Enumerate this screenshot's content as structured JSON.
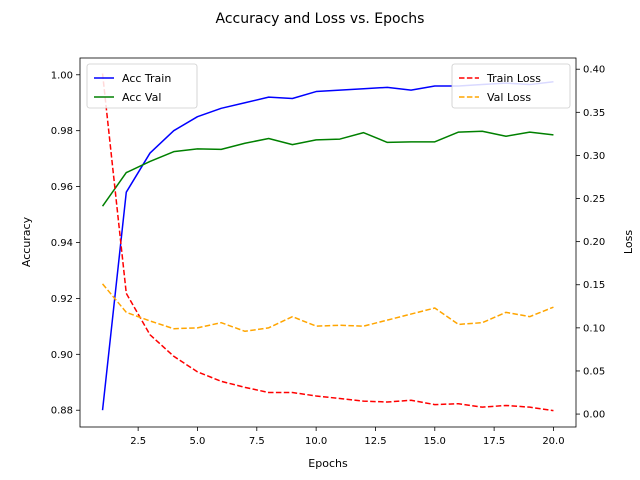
{
  "chart_data": {
    "type": "line",
    "title": "Accuracy and Loss vs. Epochs",
    "xlabel": "Epochs",
    "ylabel_left": "Accuracy",
    "ylabel_right": "Loss",
    "xlim": [
      0.05,
      20.95
    ],
    "ylim_left": [
      0.874,
      1.006
    ],
    "ylim_right": [
      -0.015,
      0.413
    ],
    "x_ticks": [
      2.5,
      5.0,
      7.5,
      10.0,
      12.5,
      15.0,
      17.5,
      20.0
    ],
    "y_ticks_left": [
      0.88,
      0.9,
      0.92,
      0.94,
      0.96,
      0.98,
      1.0
    ],
    "y_ticks_right": [
      0.0,
      0.05,
      0.1,
      0.15,
      0.2,
      0.25,
      0.3,
      0.35,
      0.4
    ],
    "grid": false,
    "x": [
      1,
      2,
      3,
      4,
      5,
      6,
      7,
      8,
      9,
      10,
      11,
      12,
      13,
      14,
      15,
      16,
      17,
      18,
      19,
      20
    ],
    "series_left": [
      {
        "name": "Acc Train",
        "color": "#0000ff",
        "dash": "solid",
        "values": [
          0.88,
          0.958,
          0.972,
          0.98,
          0.985,
          0.988,
          0.99,
          0.992,
          0.9915,
          0.994,
          0.9945,
          0.995,
          0.9955,
          0.9945,
          0.996,
          0.996,
          0.9965,
          0.997,
          0.9965,
          0.9975
        ]
      },
      {
        "name": "Acc Val",
        "color": "#008000",
        "dash": "solid",
        "values": [
          0.953,
          0.965,
          0.969,
          0.9725,
          0.9735,
          0.9733,
          0.9755,
          0.9772,
          0.975,
          0.9767,
          0.977,
          0.9793,
          0.9758,
          0.976,
          0.976,
          0.9795,
          0.9798,
          0.978,
          0.9795,
          0.9785
        ]
      }
    ],
    "series_right": [
      {
        "name": "Train Loss",
        "color": "#ff0000",
        "dash": "dashed",
        "values": [
          0.395,
          0.14,
          0.092,
          0.067,
          0.049,
          0.038,
          0.031,
          0.025,
          0.025,
          0.021,
          0.018,
          0.015,
          0.014,
          0.016,
          0.011,
          0.012,
          0.008,
          0.01,
          0.008,
          0.004
        ]
      },
      {
        "name": "Val Loss",
        "color": "#ffa500",
        "dash": "dashed",
        "values": [
          0.151,
          0.118,
          0.108,
          0.099,
          0.1,
          0.106,
          0.096,
          0.1,
          0.113,
          0.102,
          0.103,
          0.102,
          0.109,
          0.116,
          0.123,
          0.104,
          0.106,
          0.118,
          0.113,
          0.124
        ]
      }
    ],
    "legend_left": "upper-left",
    "legend_right": "upper-right"
  }
}
